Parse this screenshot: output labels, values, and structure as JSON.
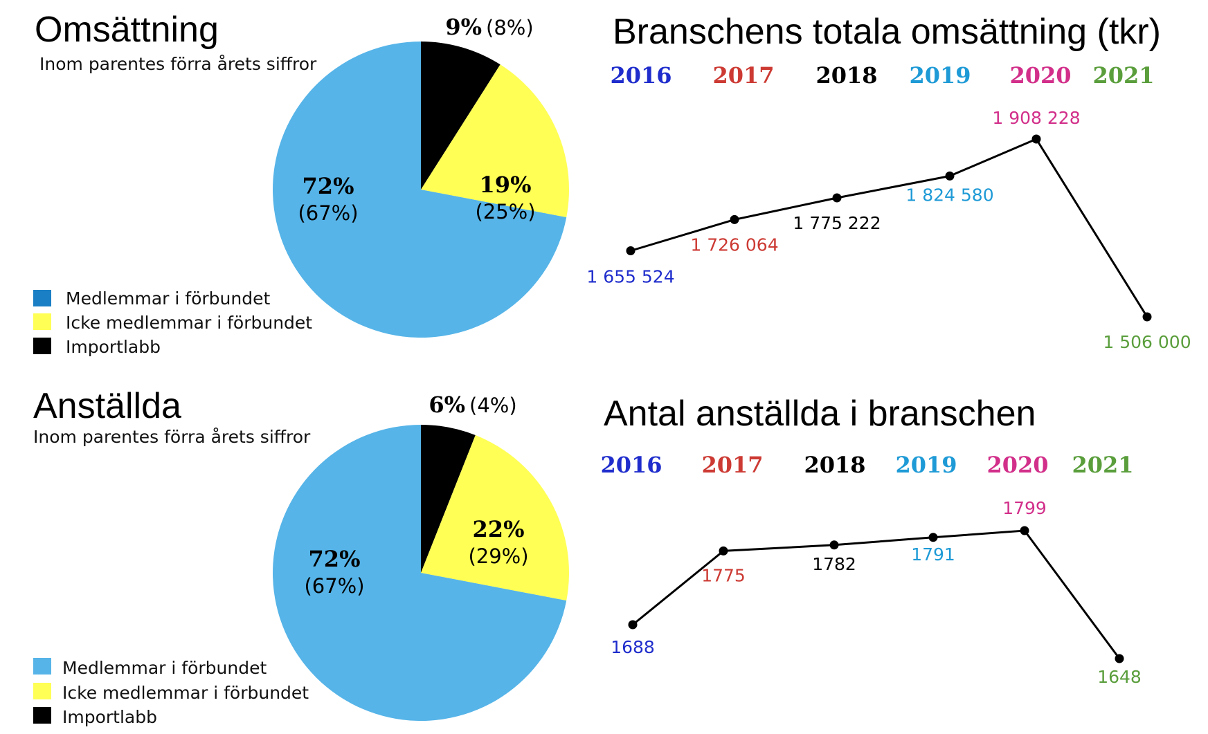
{
  "colors": {
    "members": "#56b4e8",
    "non_members": "#ffff55",
    "import": "#000000",
    "legend_members": "#1a7fc4",
    "line": "#000000",
    "year_2016": "#1f2dcc",
    "year_2017": "#cc3a33",
    "year_2018": "#000000",
    "year_2019": "#1e9ad6",
    "year_2020": "#d22f8a",
    "year_2021": "#5a9e3c"
  },
  "legend": [
    "Medlemmar i förbundet",
    "Icke medlemmar i förbundet",
    "Importlabb"
  ],
  "chart_data": [
    {
      "type": "pie",
      "title": "Omsättning",
      "subtitle": "Inom parentes förra årets siffror",
      "slices": [
        {
          "label": "Medlemmar i förbundet",
          "value": 72,
          "value_text": "72%",
          "previous": "(67%)"
        },
        {
          "label": "Icke medlemmar i förbundet",
          "value": 19,
          "value_text": "19%",
          "previous": "(25%)"
        },
        {
          "label": "Importlabb",
          "value": 9,
          "value_text": "9%",
          "previous": "(8%)"
        }
      ]
    },
    {
      "type": "line",
      "title": "Branschens totala omsättning (tkr)",
      "x": [
        "2016",
        "2017",
        "2018",
        "2019",
        "2020",
        "2021"
      ],
      "y": [
        1655524,
        1726064,
        1775222,
        1824580,
        1908228,
        1506000
      ],
      "value_labels": [
        "1 655 524",
        "1 726 064",
        "1 775 222",
        "1 824 580",
        "1 908 228",
        "1 506 000"
      ],
      "ylim": [
        1506000,
        1908228
      ]
    },
    {
      "type": "pie",
      "title": "Anställda",
      "subtitle": "Inom parentes förra årets siffror",
      "slices": [
        {
          "label": "Medlemmar i förbundet",
          "value": 72,
          "value_text": "72%",
          "previous": "(67%)"
        },
        {
          "label": "Icke medlemmar i förbundet",
          "value": 22,
          "value_text": "22%",
          "previous": "(29%)"
        },
        {
          "label": "Importlabb",
          "value": 6,
          "value_text": "6%",
          "previous": "(4%)"
        }
      ]
    },
    {
      "type": "line",
      "title": "Antal anställda i branschen",
      "x": [
        "2016",
        "2017",
        "2018",
        "2019",
        "2020",
        "2021"
      ],
      "y": [
        1688,
        1775,
        1782,
        1791,
        1799,
        1648
      ],
      "value_labels": [
        "1688",
        "1775",
        "1782",
        "1791",
        "1799",
        "1648"
      ],
      "ylim": [
        1648,
        1799
      ]
    }
  ]
}
